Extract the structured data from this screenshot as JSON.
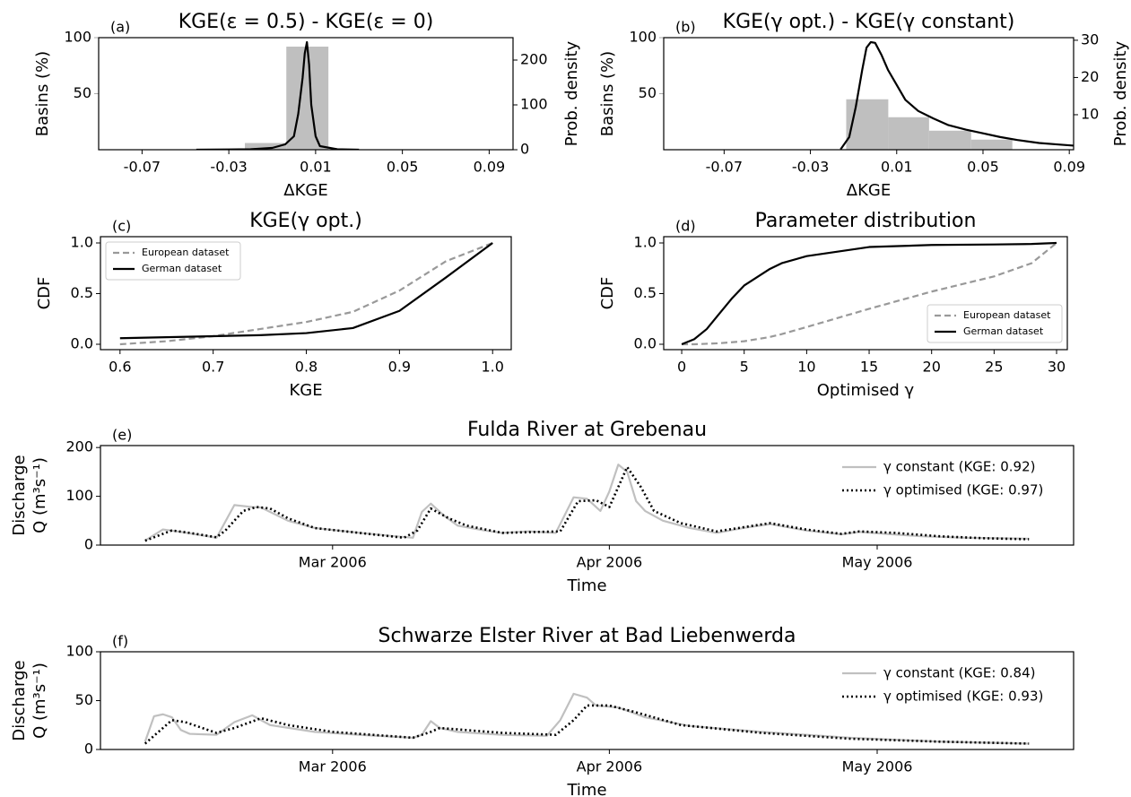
{
  "chart_data": [
    {
      "type": "histogram",
      "panel_label": "(a)",
      "title": "KGE(ε = 0.5) - KGE(ε = 0)",
      "xlabel": "ΔKGE",
      "ylabel": "Basins (%)",
      "y2label": "Prob. density",
      "ylabel_color": "#aaaaaa",
      "bins": [
        -0.0226,
        -0.0035,
        0.0159
      ],
      "values": [
        6,
        92
      ],
      "color": "#bfbfbf",
      "density": {
        "axis": "y2",
        "color": "#000000",
        "x": [
          -0.045,
          -0.03,
          -0.02,
          -0.01,
          -0.004,
          0,
          0.002,
          0.004,
          0.005,
          0.006,
          0.007,
          0.008,
          0.01,
          0.012,
          0.02,
          0.03
        ],
        "values": [
          0,
          0.5,
          1,
          4,
          12,
          30,
          80,
          160,
          215,
          240,
          190,
          100,
          30,
          8,
          1,
          0
        ]
      },
      "xlim": [
        -0.09,
        0.101
      ],
      "xticks": [
        -0.07,
        -0.03,
        0.01,
        0.05,
        0.09
      ],
      "ylim": [
        0,
        100
      ],
      "yticks": [
        50,
        100
      ],
      "y2lim": [
        0,
        250
      ],
      "y2ticks": [
        0,
        100,
        200
      ]
    },
    {
      "type": "histogram",
      "panel_label": "(b)",
      "title": "KGE(γ opt.) - KGE(γ constant)",
      "xlabel": "ΔKGE",
      "ylabel": "Basins (%)",
      "y2label": "Prob. density",
      "ylabel_color": "#aaaaaa",
      "bins": [
        -0.0134,
        0.0061,
        0.025,
        0.0445,
        0.0636
      ],
      "values": [
        45,
        29,
        17,
        9
      ],
      "color": "#bfbfbf",
      "density": {
        "axis": "y2",
        "color": "#000000",
        "x": [
          -0.016,
          -0.012,
          -0.009,
          -0.006,
          -0.004,
          -0.002,
          0,
          0.003,
          0.006,
          0.009,
          0.014,
          0.02,
          0.027,
          0.034,
          0.042,
          0.05,
          0.058,
          0.066,
          0.076,
          0.085,
          0.092
        ],
        "values": [
          0.7,
          4,
          12,
          22,
          28,
          29.5,
          29.3,
          26,
          22,
          19,
          14,
          11,
          9,
          7.2,
          6,
          5,
          4,
          3.2,
          2.4,
          2,
          1.7
        ]
      },
      "xlim": [
        -0.098,
        0.092
      ],
      "xticks": [
        -0.07,
        -0.03,
        0.01,
        0.05,
        0.09
      ],
      "ylim": [
        0,
        100
      ],
      "yticks": [
        50,
        100
      ],
      "y2lim": [
        0.6,
        30.7
      ],
      "y2ticks": [
        10,
        20,
        30
      ]
    },
    {
      "type": "line",
      "panel_label": "(c)",
      "title": "KGE(γ opt.)",
      "xlabel": "KGE",
      "ylabel": "CDF",
      "legend": "upper left",
      "legend_frame": true,
      "x": [
        0.6,
        0.65,
        0.7,
        0.75,
        0.8,
        0.85,
        0.9,
        0.95,
        1.0
      ],
      "series": [
        {
          "name": "European dataset",
          "color": "#999999",
          "dash": "dashed",
          "values": [
            0,
            0.03,
            0.08,
            0.15,
            0.22,
            0.32,
            0.53,
            0.82,
            1.0
          ]
        },
        {
          "name": "German dataset",
          "color": "#000000",
          "dash": "solid",
          "values": [
            0.06,
            0.07,
            0.08,
            0.09,
            0.11,
            0.16,
            0.33,
            0.66,
            1.0
          ]
        }
      ],
      "xlim": [
        0.579,
        1.02
      ],
      "xticks": [
        0.6,
        0.7,
        0.8,
        0.9,
        {
          "value": 1,
          "label": "1.0"
        }
      ],
      "ylim": [
        -0.053,
        1.062
      ],
      "yticks": [
        {
          "value": 0,
          "label": "0.0"
        },
        0.5,
        {
          "value": 1,
          "label": "1.0"
        }
      ]
    },
    {
      "type": "line",
      "panel_label": "(d)",
      "title": "Parameter distribution",
      "xlabel": "Optimised γ",
      "ylabel": "CDF",
      "legend": "lower right",
      "legend_frame": true,
      "x": [
        0,
        1,
        2,
        3,
        4,
        5,
        7,
        8,
        10,
        15,
        20,
        25,
        28,
        30
      ],
      "series": [
        {
          "name": "European dataset",
          "color": "#999999",
          "dash": "dashed",
          "values": [
            0,
            0,
            0.005,
            0.01,
            0.02,
            0.03,
            0.07,
            0.1,
            0.17,
            0.35,
            0.52,
            0.67,
            0.8,
            1.0
          ]
        },
        {
          "name": "German dataset",
          "color": "#000000",
          "dash": "solid",
          "values": [
            0,
            0.05,
            0.15,
            0.3,
            0.45,
            0.58,
            0.74,
            0.8,
            0.87,
            0.96,
            0.98,
            0.985,
            0.99,
            1.0
          ]
        }
      ],
      "xlim": [
        -1.44,
        30.86
      ],
      "xticks": [
        0,
        5,
        10,
        15,
        20,
        25,
        30
      ],
      "ylim": [
        -0.053,
        1.062
      ],
      "yticks": [
        {
          "value": 0,
          "label": "0.0"
        },
        0.5,
        {
          "value": 1,
          "label": "1.0"
        }
      ]
    },
    {
      "type": "line",
      "panel_label": "(e)",
      "title": "Fulda River at Grebenau",
      "xlabel": "Time",
      "ylabel": [
        "Discharge",
        "Q (m³s⁻¹)"
      ],
      "legend": "upper right",
      "legend_frame": false,
      "series": [
        {
          "name": "γ constant (KGE: 0.92)",
          "color": "#c0c0c0",
          "dash": "solid",
          "x": [
            7,
            9,
            11,
            14,
            15,
            17,
            19,
            20,
            23,
            26,
            31,
            35,
            37,
            38,
            39,
            40.5,
            42,
            45,
            47,
            50,
            53,
            55,
            56.5,
            58,
            59,
            60,
            61,
            62,
            63,
            65,
            68,
            71,
            74,
            77,
            81,
            85,
            87,
            90,
            94,
            99,
            106
          ],
          "values": [
            9,
            32,
            27,
            18,
            15,
            82,
            78,
            77,
            50,
            35,
            25,
            18,
            15,
            68,
            85,
            60,
            40,
            30,
            25,
            28,
            25,
            98,
            95,
            70,
            110,
            165,
            150,
            90,
            70,
            50,
            35,
            25,
            35,
            43,
            30,
            22,
            27,
            23,
            18,
            15,
            13
          ]
        },
        {
          "name": "γ optimised (KGE: 0.97)",
          "color": "#000000",
          "dash": "dotted",
          "x": [
            7,
            10,
            12,
            15,
            16,
            18,
            19.5,
            21,
            23,
            26,
            31,
            36,
            37.5,
            39,
            41,
            43,
            47,
            51,
            53.5,
            55.5,
            57.5,
            59,
            61,
            62.5,
            64,
            67,
            71,
            77,
            81,
            85,
            87,
            91,
            96,
            101,
            106
          ],
          "values": [
            9,
            30,
            25,
            16,
            30,
            70,
            78,
            75,
            55,
            35,
            25,
            15,
            30,
            75,
            55,
            40,
            25,
            27,
            28,
            90,
            92,
            78,
            160,
            120,
            70,
            45,
            28,
            45,
            32,
            23,
            28,
            25,
            18,
            14,
            12
          ]
        }
      ],
      "xlim": [
        2,
        111
      ],
      "xticks": [
        {
          "value": 28,
          "label": "Mar 2006"
        },
        {
          "value": 59,
          "label": "Apr 2006"
        },
        {
          "value": 89,
          "label": "May 2006"
        }
      ],
      "ylim": [
        0,
        204
      ],
      "yticks": [
        0,
        100,
        200
      ]
    },
    {
      "type": "line",
      "panel_label": "(f)",
      "title": "Schwarze Elster River at Bad Liebenwerda",
      "xlabel": "Time",
      "ylabel": [
        "Discharge",
        "Q (m³s⁻¹)"
      ],
      "legend": "upper right",
      "legend_frame": false,
      "series": [
        {
          "name": "γ constant (KGE: 0.84)",
          "color": "#c0c0c0",
          "dash": "solid",
          "x": [
            7,
            8,
            9,
            10,
            11,
            12,
            15,
            17,
            19,
            21,
            26,
            31,
            37,
            38,
            39,
            40,
            42,
            47,
            52,
            53.5,
            55,
            56.5,
            57.5,
            60,
            63,
            68,
            76,
            86,
            96,
            106
          ],
          "values": [
            8,
            34,
            36,
            33,
            20,
            16,
            15,
            28,
            35,
            25,
            18,
            15,
            12,
            15,
            29,
            22,
            18,
            15,
            14,
            30,
            57,
            53,
            45,
            43,
            33,
            24,
            18,
            12,
            8,
            6
          ]
        },
        {
          "name": "γ optimised (KGE: 0.93)",
          "color": "#000000",
          "dash": "dotted",
          "x": [
            7,
            10,
            11.5,
            15,
            17,
            20,
            23,
            28,
            34,
            37,
            39,
            40,
            47,
            53,
            55,
            56.5,
            59,
            62,
            67,
            76,
            86,
            96,
            106
          ],
          "values": [
            6,
            30,
            28,
            17,
            22,
            32,
            25,
            18,
            14,
            12,
            18,
            22,
            17,
            15,
            30,
            45,
            45,
            38,
            25,
            17,
            11,
            8,
            6
          ]
        }
      ],
      "xlim": [
        2,
        111
      ],
      "xticks": [
        {
          "value": 28,
          "label": "Mar 2006"
        },
        {
          "value": 59,
          "label": "Apr 2006"
        },
        {
          "value": 89,
          "label": "May 2006"
        }
      ],
      "ylim": [
        0,
        100
      ],
      "yticks": [
        0,
        50,
        100
      ]
    }
  ]
}
